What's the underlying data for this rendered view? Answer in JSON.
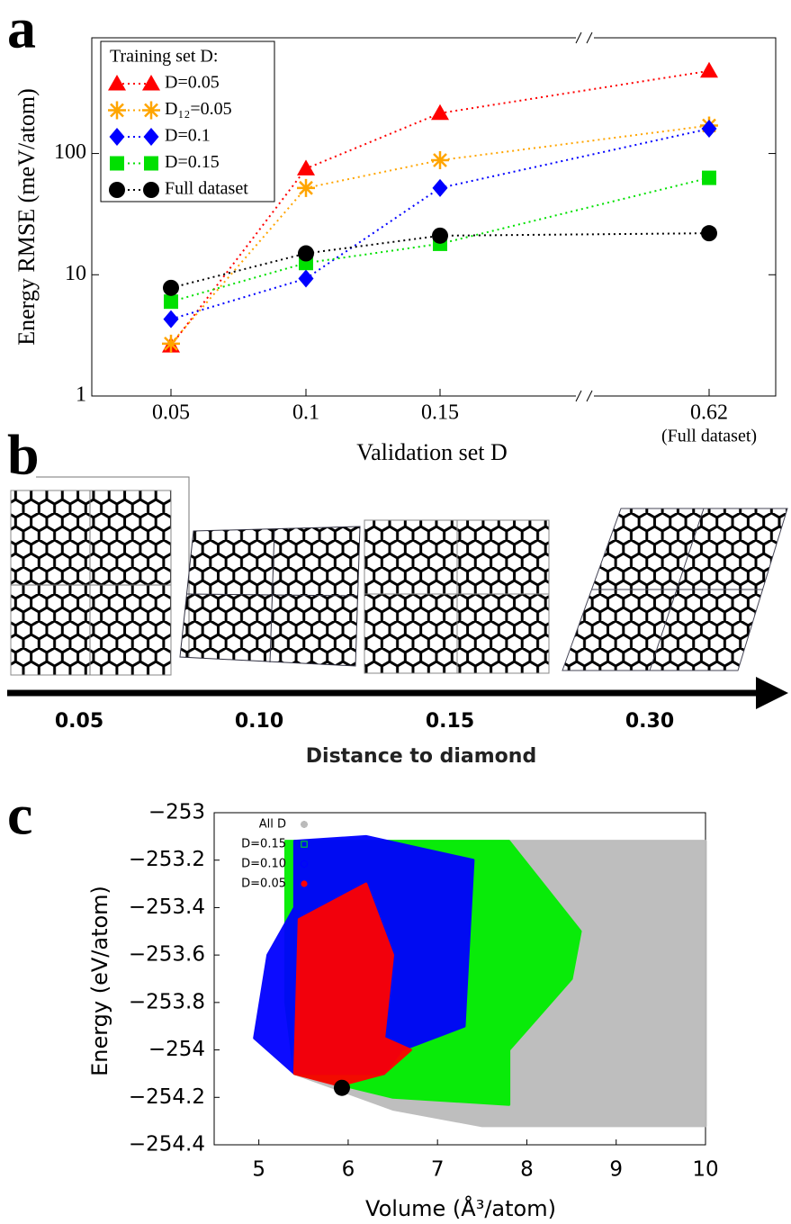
{
  "panel_labels": [
    "a",
    "b",
    "c"
  ],
  "panel_b": {
    "labels": [
      "0.05",
      "0.10",
      "0.15",
      "0.30"
    ],
    "axis_label": "Distance to diamond"
  },
  "chart_data": [
    {
      "type": "line",
      "x_label": "Validation set D",
      "y_label": "Energy RMSE (meV/atom)",
      "categories": [
        "0.05",
        "0.1",
        "0.15",
        "0.62"
      ],
      "annotations": [
        "(Full dataset)"
      ],
      "legend_title": "Training set D:",
      "legend": "upper left",
      "log_y": true,
      "ylim": [
        1,
        900
      ],
      "yticks": [
        1,
        10,
        100
      ],
      "series": [
        {
          "name": "D=0.05",
          "color": "#ff0000",
          "marker": "triangle",
          "values": [
            2.6,
            75,
            215,
            480
          ]
        },
        {
          "name": "D₁₂=0.05",
          "color": "#ffa500",
          "marker": "star",
          "values": [
            2.7,
            52,
            88,
            170
          ]
        },
        {
          "name": "D=0.1",
          "color": "#0000ff",
          "marker": "diamond",
          "values": [
            4.3,
            9.3,
            52,
            160
          ]
        },
        {
          "name": "D=0.15",
          "color": "#00e000",
          "marker": "square",
          "values": [
            6,
            12.5,
            18,
            63
          ]
        },
        {
          "name": "Full dataset",
          "color": "#000000",
          "marker": "circle",
          "values": [
            7.8,
            15,
            21,
            22
          ]
        }
      ]
    },
    {
      "type": "scatter",
      "x_label": "Volume (Å³/atom)",
      "y_label": "Energy (eV/atom)",
      "legend": "upper left",
      "xlim": [
        4.5,
        10
      ],
      "xticks": [
        5,
        6,
        7,
        8,
        9,
        10
      ],
      "ylim": [
        -254.4,
        -253
      ],
      "yticks": [
        {
          "value": -253,
          "label": "−253"
        },
        {
          "value": -253.2,
          "label": "−253.2"
        },
        {
          "value": -253.4,
          "label": "−253.4"
        },
        {
          "value": -253.6,
          "label": "−253.6"
        },
        {
          "value": -253.8,
          "label": "−253.8"
        },
        {
          "value": -254,
          "label": "−254"
        },
        {
          "value": -254.2,
          "label": "−254.2"
        },
        {
          "value": -254.4,
          "label": "−254.4"
        }
      ],
      "series": [
        {
          "name": "All D",
          "color": "#bbbbbb",
          "marker": "star",
          "x": [
            5.4,
            10,
            10,
            7.5,
            6.5,
            5.4
          ],
          "y": [
            -253.12,
            -253.12,
            -254.32,
            -254.32,
            -254.25,
            -254.1
          ]
        },
        {
          "name": "D=0.15",
          "color": "#00ee00",
          "marker": "square",
          "x": [
            5.3,
            7.8,
            8.6,
            8.5,
            7.8,
            7.8,
            6.5,
            5.4,
            5.3
          ],
          "y": [
            -253.12,
            -253.12,
            -253.5,
            -253.7,
            -254.0,
            -254.23,
            -254.2,
            -254.1,
            -253.8
          ]
        },
        {
          "name": "D=0.10",
          "color": "#0000ff",
          "marker": "circle",
          "x": [
            5.4,
            6.2,
            7.4,
            7.3,
            6.6,
            6.4,
            5.4,
            4.95,
            5.1,
            5.4
          ],
          "y": [
            -253.12,
            -253.1,
            -253.2,
            -253.9,
            -254.0,
            -254.1,
            -254.1,
            -253.95,
            -253.6,
            -253.4
          ]
        },
        {
          "name": "D=0.05",
          "color": "#ff0000",
          "marker": "dot",
          "x": [
            5.45,
            6.2,
            6.5,
            6.4,
            6.7,
            6.4,
            5.9,
            5.4
          ],
          "y": [
            -253.45,
            -253.3,
            -253.6,
            -253.95,
            -254.0,
            -254.1,
            -254.15,
            -254.1
          ]
        },
        {
          "color": "#000000",
          "marker": "big-dot",
          "x": [
            5.93
          ],
          "y": [
            -254.16
          ]
        }
      ]
    }
  ]
}
